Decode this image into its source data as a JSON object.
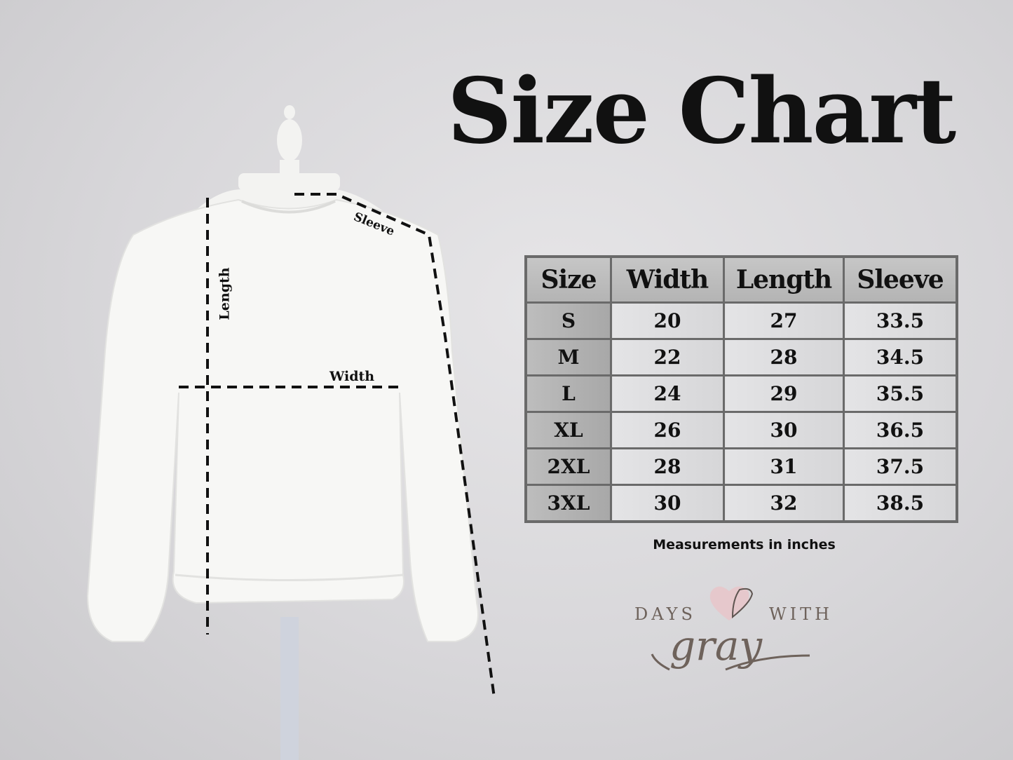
{
  "title": "Size Chart",
  "measure_labels": {
    "length": "Length",
    "width": "Width",
    "sleeve": "Sleeve"
  },
  "table": {
    "headers": [
      "Size",
      "Width",
      "Length",
      "Sleeve"
    ],
    "rows": [
      [
        "S",
        "20",
        "27",
        "33.5"
      ],
      [
        "M",
        "22",
        "28",
        "34.5"
      ],
      [
        "L",
        "24",
        "29",
        "35.5"
      ],
      [
        "XL",
        "26",
        "30",
        "36.5"
      ],
      [
        "2XL",
        "28",
        "31",
        "37.5"
      ],
      [
        "3XL",
        "30",
        "32",
        "38.5"
      ]
    ]
  },
  "note": "Measurements in inches",
  "logo": {
    "word1": "DAYS",
    "word2": "WITH",
    "word3": "gray",
    "heart_color": "#e8c4c8",
    "text_color": "#6e625b"
  }
}
